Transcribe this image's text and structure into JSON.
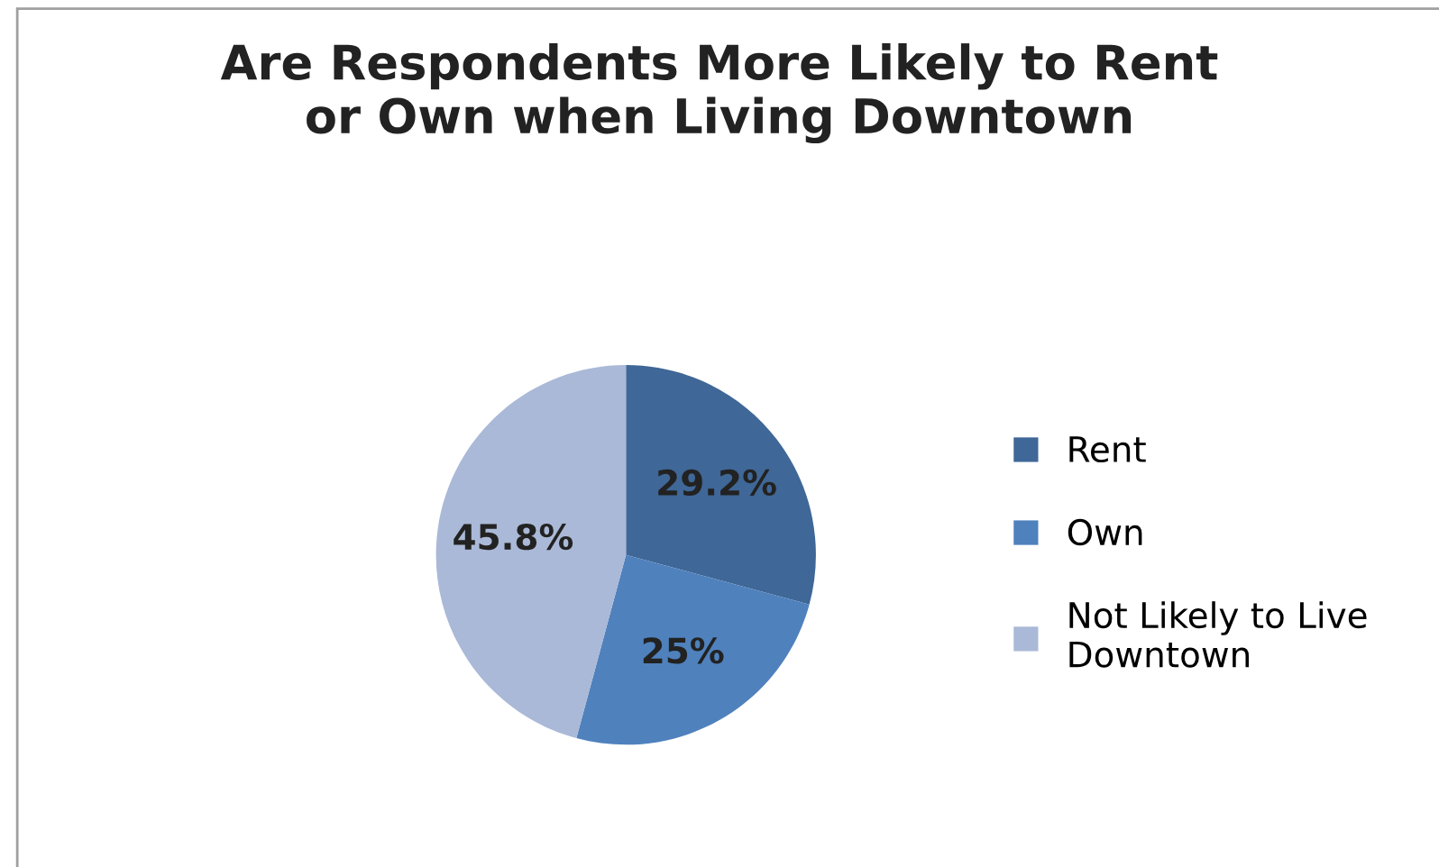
{
  "chart_data": {
    "type": "pie",
    "title": "Are Respondents More Likely to Rent\nor Own when Living Downtown",
    "categories": [
      "Rent",
      "Own",
      "Not Likely to Live\nDowntown"
    ],
    "values": [
      29.2,
      25,
      45.8
    ],
    "value_labels": [
      "29.2%",
      "25%",
      "45.8%"
    ],
    "colors": [
      "#3f6797",
      "#4f81bd",
      "#aab9d7"
    ],
    "legend": "right"
  }
}
